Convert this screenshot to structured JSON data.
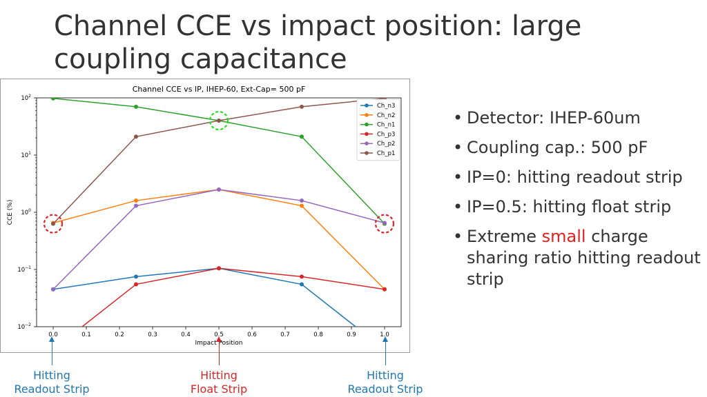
{
  "slide": {
    "title_line1": "Channel CCE vs impact position: large",
    "title_line2": "coupling capacitance"
  },
  "bullets": [
    {
      "text": "Detector: IHEP-60um"
    },
    {
      "text": "Coupling cap.: 500 pF"
    },
    {
      "text": "IP=0: hitting readout strip"
    },
    {
      "text": "IP=0.5: hitting float strip"
    },
    {
      "pre": "Extreme ",
      "highlight": "small",
      "post": " charge sharing ratio hitting readout strip"
    }
  ],
  "bottom_labels": [
    {
      "line1": "Hitting",
      "line2": "Readout Strip",
      "color": "#1f77b4"
    },
    {
      "line1": "Hitting",
      "line2": "Float Strip",
      "color": "#d62728"
    },
    {
      "line1": "Hitting",
      "line2": "Readout Strip",
      "color": "#1f77b4"
    }
  ],
  "highlight_color": "#e02020",
  "chart_data": {
    "type": "line",
    "title": "Channel CCE vs IP, IHEP-60, Ext-Cap= 500 pF",
    "xlabel": "Impact Position",
    "ylabel": "CCE (%)",
    "yscale": "log",
    "xlim": [
      -0.05,
      1.05
    ],
    "ylim": [
      0.01,
      100
    ],
    "xticks": [
      "0.0",
      "0.1",
      "0.2",
      "0.3",
      "0.4",
      "0.5",
      "0.6",
      "0.7",
      "0.8",
      "0.9",
      "1.0"
    ],
    "yticks": [
      {
        "value": 100,
        "base": "10",
        "exp": "2"
      },
      {
        "value": 10,
        "base": "10",
        "exp": "1"
      },
      {
        "value": 1,
        "base": "10",
        "exp": "0"
      },
      {
        "value": 0.1,
        "base": "10",
        "exp": "−1"
      },
      {
        "value": 0.01,
        "base": "10",
        "exp": "−2"
      }
    ],
    "legend_position": "top-right",
    "x": [
      0.0,
      0.25,
      0.5,
      0.75,
      1.0
    ],
    "series": [
      {
        "name": "Ch_n3",
        "color": "#1f77b4",
        "values": [
          0.045,
          0.075,
          0.105,
          0.055,
          0.004
        ]
      },
      {
        "name": "Ch_n2",
        "color": "#ff7f0e",
        "values": [
          0.65,
          1.6,
          2.5,
          1.3,
          0.045
        ]
      },
      {
        "name": "Ch_n1",
        "color": "#2ca02c",
        "values": [
          98,
          70,
          40,
          21,
          0.63
        ]
      },
      {
        "name": "Ch_p3",
        "color": "#d62728",
        "values": [
          0.004,
          0.055,
          0.105,
          0.075,
          0.045
        ]
      },
      {
        "name": "Ch_p2",
        "color": "#9467bd",
        "values": [
          0.045,
          1.3,
          2.5,
          1.6,
          0.65
        ]
      },
      {
        "name": "Ch_p1",
        "color": "#8c564b",
        "values": [
          0.63,
          21,
          40,
          70,
          98
        ]
      }
    ],
    "circle_markers": [
      {
        "x": 0.0,
        "y": 0.63,
        "color": "#e02020"
      },
      {
        "x": 0.5,
        "y": 40,
        "color": "#22dd22"
      },
      {
        "x": 1.0,
        "y": 0.63,
        "color": "#e02020"
      }
    ]
  }
}
